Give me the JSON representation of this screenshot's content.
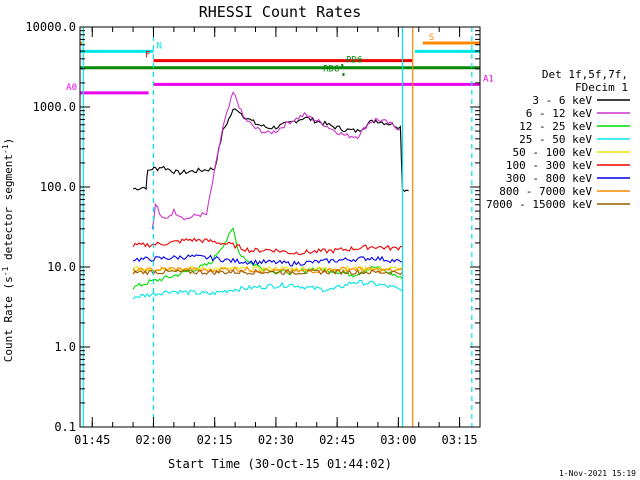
{
  "chart_data": {
    "type": "line",
    "title": "RHESSI Count Rates",
    "xlabel": "Start Time (30-Oct-15 01:44:02)",
    "ylabel_parts": [
      "Count Rate (s",
      "-1",
      " detector segment",
      "-1",
      ")"
    ],
    "yscale": "log",
    "ylim": [
      0.1,
      10000
    ],
    "xlim_minutes": [
      -2,
      96
    ],
    "xticks": [
      {
        "m": 1,
        "label": "01:45"
      },
      {
        "m": 16,
        "label": "02:00"
      },
      {
        "m": 31,
        "label": "02:15"
      },
      {
        "m": 46,
        "label": "02:30"
      },
      {
        "m": 61,
        "label": "02:45"
      },
      {
        "m": 76,
        "label": "03:00"
      },
      {
        "m": 91,
        "label": "03:15"
      }
    ],
    "yticks": [
      {
        "v": 0.1,
        "label": "0.1"
      },
      {
        "v": 1,
        "label": "1.0"
      },
      {
        "v": 10,
        "label": "10.0"
      },
      {
        "v": 100,
        "label": "100.0"
      },
      {
        "v": 1000,
        "label": "1000.0"
      },
      {
        "v": 10000,
        "label": "10000.0"
      }
    ],
    "legend": {
      "header": [
        "Det 1f,5f,7f,",
        "FDecim 1"
      ],
      "entries": [
        {
          "label": "3 - 6 keV",
          "color": "#000000"
        },
        {
          "label": "6 - 12 keV",
          "color": "#cc33cc"
        },
        {
          "label": "12 - 25 keV",
          "color": "#00dd00"
        },
        {
          "label": "25 - 50 keV",
          "color": "#00e5e5"
        },
        {
          "label": "50 - 100 keV",
          "color": "#e8e800"
        },
        {
          "label": "100 - 300 keV",
          "color": "#ee0000"
        },
        {
          "label": "300 - 800 keV",
          "color": "#0000ee"
        },
        {
          "label": "800 - 7000 keV",
          "color": "#ff8800"
        },
        {
          "label": "7000 - 15000 keV",
          "color": "#9a5a00"
        }
      ]
    },
    "series": [
      {
        "name": "3 - 6 keV",
        "color": "#000000",
        "x": [
          11,
          14.2,
          14.6,
          15.7,
          17,
          18,
          22,
          27,
          31,
          33,
          35.5,
          36.5,
          38,
          41,
          44,
          46,
          49,
          53,
          57,
          60,
          63,
          66,
          69,
          70.5,
          72.5,
          75,
          76.5,
          77,
          78.5
        ],
        "y": [
          95,
          100,
          160,
          170,
          170,
          180,
          150,
          160,
          170,
          500,
          900,
          950,
          780,
          620,
          550,
          560,
          620,
          740,
          640,
          570,
          520,
          500,
          640,
          680,
          640,
          600,
          560,
          95,
          90
        ]
      },
      {
        "name": "6 - 12 keV",
        "color": "#cc33cc",
        "x": [
          15.7,
          16.5,
          17,
          18,
          19,
          21,
          24,
          27,
          29,
          31,
          33,
          34.5,
          35.5,
          36.5,
          38,
          41,
          44,
          46,
          49,
          53,
          57,
          60,
          63,
          66,
          69,
          70.5,
          72.5,
          75,
          76.5
        ],
        "y": [
          30,
          60,
          55,
          40,
          40,
          50,
          40,
          45,
          45,
          160,
          550,
          1000,
          1500,
          1200,
          750,
          540,
          470,
          500,
          640,
          800,
          640,
          520,
          440,
          430,
          650,
          700,
          660,
          580,
          520
        ]
      },
      {
        "name": "12 - 25 keV",
        "color": "#00dd00",
        "x": [
          11,
          15,
          20,
          25,
          30,
          32,
          34,
          35.5,
          37,
          40,
          45,
          50,
          55,
          60,
          65,
          70,
          75,
          77
        ],
        "y": [
          5.5,
          6.5,
          7.5,
          9,
          11,
          16,
          22,
          30,
          15,
          11,
          9,
          8.5,
          9.5,
          9,
          8,
          10,
          8,
          7
        ]
      },
      {
        "name": "25 - 50 keV",
        "color": "#00e5e5",
        "x": [
          11,
          15,
          20,
          25,
          30,
          35,
          40,
          45,
          50,
          55,
          60,
          65,
          70,
          75,
          77
        ],
        "y": [
          4.2,
          4.5,
          5,
          4.8,
          4.6,
          5.2,
          5.5,
          5.8,
          6,
          5.4,
          5.2,
          6.5,
          6.2,
          5.5,
          5
        ]
      },
      {
        "name": "50 - 100 keV",
        "color": "#e8e800",
        "x": [
          11,
          20,
          30,
          40,
          50,
          60,
          70,
          77
        ],
        "y": [
          9.5,
          9.5,
          9.5,
          9.5,
          9.5,
          9.5,
          9.5,
          9.5
        ]
      },
      {
        "name": "100 - 300 keV",
        "color": "#ee0000",
        "x": [
          11,
          15,
          20,
          25,
          30,
          35,
          40,
          45,
          50,
          55,
          60,
          65,
          70,
          75,
          77
        ],
        "y": [
          18.5,
          19,
          20,
          22,
          21,
          19,
          16,
          16.5,
          15,
          15.5,
          16,
          17,
          18,
          17,
          18
        ]
      },
      {
        "name": "300 - 800 keV",
        "color": "#0000ee",
        "x": [
          11,
          15,
          20,
          25,
          30,
          35,
          40,
          45,
          50,
          55,
          60,
          65,
          70,
          75,
          77
        ],
        "y": [
          12.5,
          12.5,
          13,
          13.5,
          13,
          12,
          11.5,
          11.5,
          11,
          11.5,
          12,
          12.5,
          13,
          12,
          11.5
        ]
      },
      {
        "name": "800 - 7000 keV",
        "color": "#ff8800",
        "x": [
          11,
          15,
          20,
          25,
          30,
          35,
          40,
          45,
          50,
          55,
          60,
          65,
          70,
          75,
          77
        ],
        "y": [
          9,
          9.2,
          9.5,
          9.3,
          9,
          9.5,
          9.2,
          9,
          8.8,
          9,
          9.3,
          9.5,
          9.2,
          9,
          9
        ]
      },
      {
        "name": "7000 - 15000 keV",
        "color": "#9a5a00",
        "x": [
          11,
          20,
          30,
          40,
          50,
          60,
          70,
          77
        ],
        "y": [
          8.6,
          8.7,
          8.6,
          8.7,
          8.6,
          8.7,
          8.6,
          8.6
        ]
      }
    ],
    "vertical_lines": [
      {
        "m": -1.2,
        "color": "#00e5e5",
        "dashed": false
      },
      {
        "m": 16,
        "color": "#00e5e5",
        "dashed": true
      },
      {
        "m": 77,
        "color": "#00e5e5",
        "dashed": false
      },
      {
        "m": 79.5,
        "color": "#ff8800",
        "dashed": false
      },
      {
        "m": 94,
        "color": "#00e5e5",
        "dashed": true
      }
    ],
    "flag_bars": [
      {
        "label": "S",
        "color": "#ff8800",
        "label_color": "#ff8800",
        "label_side": "left",
        "y": 6300,
        "segments": [
          [
            -2,
            -1.5
          ],
          [
            82,
            96
          ]
        ]
      },
      {
        "label": "N",
        "color": "#00e5e5",
        "label_color": "#00e5e5",
        "label_side": "right",
        "y": 4950,
        "segments": [
          [
            -2,
            16
          ],
          [
            80,
            96
          ]
        ]
      },
      {
        "label": "F",
        "color": "#ee0000",
        "label_color": "#ee0000",
        "label_side": "left",
        "y": 3800,
        "segments": [
          [
            16,
            79.5
          ]
        ]
      },
      {
        "label": "",
        "color": "#008800",
        "label_color": "#008800",
        "label_side": "left",
        "y": 3100,
        "segments": [
          [
            -2,
            96
          ]
        ]
      },
      {
        "label": "RD6",
        "color": "#008800",
        "label_color": "#008800",
        "label_side": "left",
        "y": 2550,
        "segments": [
          [
            62.3,
            62.8
          ]
        ]
      },
      {
        "label": "RD6",
        "color": "#008800",
        "label_color": "#008800",
        "label_side": "right",
        "y": 3300,
        "segments": [
          [
            62,
            62.5
          ]
        ]
      },
      {
        "label": "A0",
        "color": "#ee00ee",
        "label_color": "#ee00ee",
        "label_side": "left",
        "y": 1500,
        "segments": [
          [
            -2,
            14.8
          ]
        ]
      },
      {
        "label": "A1",
        "color": "#ee00ee",
        "label_color": "#ee00ee",
        "label_side": "right",
        "y": 1920,
        "segments": [
          [
            16,
            96
          ]
        ]
      }
    ]
  },
  "footer": {
    "date_stamp": "1-Nov-2021 15:19"
  }
}
